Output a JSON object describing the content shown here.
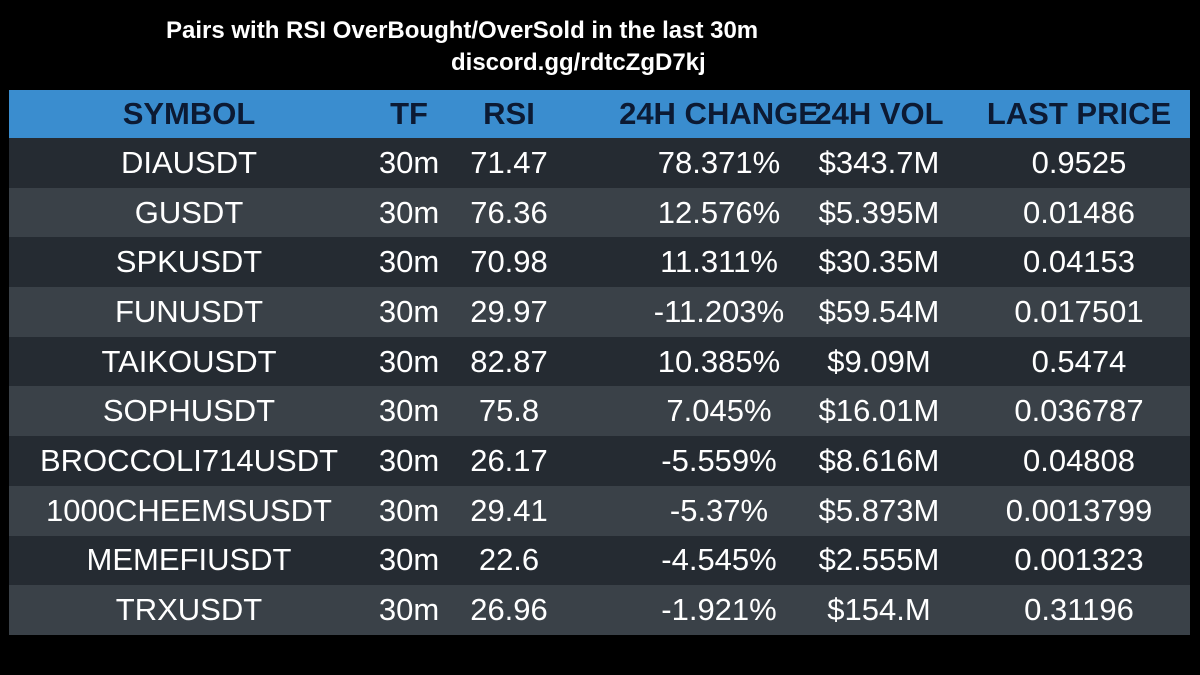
{
  "header": {
    "title": "Pairs with RSI OverBought/OverSold in the last 30m",
    "subtitle": "discord.gg/rdtcZgD7kj"
  },
  "table": {
    "columns": [
      "SYMBOL",
      "TF",
      "RSI",
      "24H CHANGE",
      "24H VOL",
      "LAST PRICE"
    ],
    "rows": [
      {
        "symbol": "DIAUSDT",
        "tf": "30m",
        "rsi": "71.47",
        "change": "78.371%",
        "vol": "$343.7M",
        "price": "0.9525"
      },
      {
        "symbol": "GUSDT",
        "tf": "30m",
        "rsi": "76.36",
        "change": "12.576%",
        "vol": "$5.395M",
        "price": "0.01486"
      },
      {
        "symbol": "SPKUSDT",
        "tf": "30m",
        "rsi": "70.98",
        "change": "11.311%",
        "vol": "$30.35M",
        "price": "0.04153"
      },
      {
        "symbol": "FUNUSDT",
        "tf": "30m",
        "rsi": "29.97",
        "change": "-11.203%",
        "vol": "$59.54M",
        "price": "0.017501"
      },
      {
        "symbol": "TAIKOUSDT",
        "tf": "30m",
        "rsi": "82.87",
        "change": "10.385%",
        "vol": "$9.09M",
        "price": "0.5474"
      },
      {
        "symbol": "SOPHUSDT",
        "tf": "30m",
        "rsi": "75.8",
        "change": "7.045%",
        "vol": "$16.01M",
        "price": "0.036787"
      },
      {
        "symbol": "BROCCOLI714USDT",
        "tf": "30m",
        "rsi": "26.17",
        "change": "-5.559%",
        "vol": "$8.616M",
        "price": "0.04808"
      },
      {
        "symbol": "1000CHEEMSUSDT",
        "tf": "30m",
        "rsi": "29.41",
        "change": "-5.37%",
        "vol": "$5.873M",
        "price": "0.0013799"
      },
      {
        "symbol": "MEMEFIUSDT",
        "tf": "30m",
        "rsi": "22.6",
        "change": "-4.545%",
        "vol": "$2.555M",
        "price": "0.001323"
      },
      {
        "symbol": "TRXUSDT",
        "tf": "30m",
        "rsi": "26.96",
        "change": "-1.921%",
        "vol": "$154.M",
        "price": "0.31196"
      }
    ]
  },
  "colors": {
    "background": "#000000",
    "header_bg": "#3a8dcf",
    "header_text": "#0c1a33",
    "row_odd": "#252b32",
    "row_even": "#3a4148",
    "text": "#ffffff"
  }
}
